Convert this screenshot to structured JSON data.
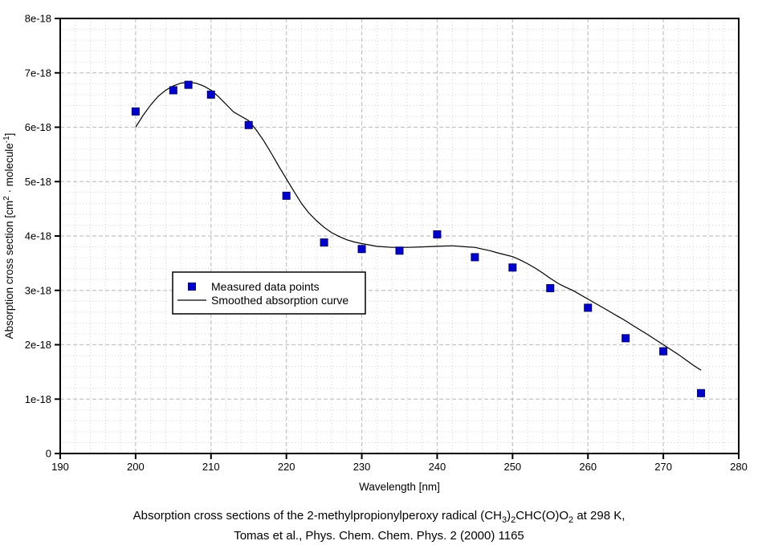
{
  "page": {
    "background": "#ffffff"
  },
  "caption": {
    "line1_segments": [
      {
        "text": "Absorption cross sections of the 2-methylpropionylperoxy radical (CH"
      },
      {
        "text": "3",
        "style": "sub"
      },
      {
        "text": ")"
      },
      {
        "text": "2",
        "style": "sub"
      },
      {
        "text": "CHC(O)O"
      },
      {
        "text": "2",
        "style": "sub"
      },
      {
        "text": " at 298 K,"
      }
    ],
    "line2": "Tomas et al., Phys. Chem. Chem. Phys. 2 (2000) 1165"
  },
  "chart_data": {
    "type": "scatter",
    "xlabel": "Wavelength [nm]",
    "ylabel_segments": [
      {
        "text": "Absorption cross section [cm"
      },
      {
        "text": "2",
        "style": "sup"
      },
      {
        "text": " · molecule"
      },
      {
        "text": "-1",
        "style": "sup"
      },
      {
        "text": "]"
      }
    ],
    "xlim": [
      190,
      280
    ],
    "ylim_e18": [
      0,
      8
    ],
    "x_major_step": 10,
    "x_minor_step": 2,
    "y_major_step_e18": 1,
    "y_minor_step_e18": 0.2,
    "x_tick_labels": [
      "190",
      "200",
      "210",
      "220",
      "230",
      "240",
      "250",
      "260",
      "270",
      "280"
    ],
    "y_tick_labels": [
      "0",
      "1e-18",
      "2e-18",
      "3e-18",
      "4e-18",
      "5e-18",
      "6e-18",
      "7e-18",
      "8e-18"
    ],
    "grid": {
      "major_color": "#c4c4c4",
      "minor_color": "#d2d2d2",
      "on": true
    },
    "frame_color": "#000000",
    "legend": {
      "position": "inside-upper-left-of-lower-half"
    },
    "series": [
      {
        "name": "Measured data points",
        "type": "scatter",
        "marker": "square",
        "marker_fill": "#0000cc",
        "marker_stroke": "#000066",
        "x": [
          200,
          205,
          207,
          210,
          215,
          220,
          225,
          230,
          235,
          240,
          245,
          250,
          255,
          260,
          265,
          270,
          275
        ],
        "y_e18": [
          6.29,
          6.68,
          6.78,
          6.6,
          6.04,
          4.74,
          3.88,
          3.76,
          3.73,
          4.03,
          3.61,
          3.42,
          3.04,
          2.68,
          2.12,
          1.88,
          1.11
        ]
      },
      {
        "name": "Smoothed absorption curve",
        "type": "line",
        "color": "#000000",
        "x": [
          200,
          201,
          202,
          203,
          204,
          205,
          206,
          207,
          208,
          209,
          210,
          211,
          212,
          213,
          214,
          215,
          216,
          217,
          218,
          219,
          220,
          221,
          222,
          223,
          224,
          225,
          226,
          227,
          228,
          229,
          230,
          232,
          234,
          236,
          238,
          240,
          242,
          244,
          245,
          246,
          247,
          248,
          250,
          251,
          252,
          253,
          254,
          255,
          256,
          257,
          258,
          260,
          262,
          264,
          265,
          266,
          268,
          270,
          272,
          273,
          274,
          275
        ],
        "y_e18": [
          6.0,
          6.22,
          6.41,
          6.57,
          6.68,
          6.76,
          6.81,
          6.83,
          6.81,
          6.76,
          6.68,
          6.56,
          6.42,
          6.28,
          6.2,
          6.12,
          5.95,
          5.75,
          5.52,
          5.28,
          5.05,
          4.82,
          4.6,
          4.42,
          4.28,
          4.16,
          4.06,
          3.99,
          3.93,
          3.89,
          3.86,
          3.81,
          3.79,
          3.79,
          3.8,
          3.81,
          3.82,
          3.8,
          3.79,
          3.76,
          3.73,
          3.69,
          3.62,
          3.56,
          3.49,
          3.41,
          3.32,
          3.22,
          3.13,
          3.06,
          3.0,
          2.84,
          2.68,
          2.52,
          2.44,
          2.35,
          2.18,
          2.0,
          1.82,
          1.72,
          1.62,
          1.53
        ]
      }
    ]
  }
}
